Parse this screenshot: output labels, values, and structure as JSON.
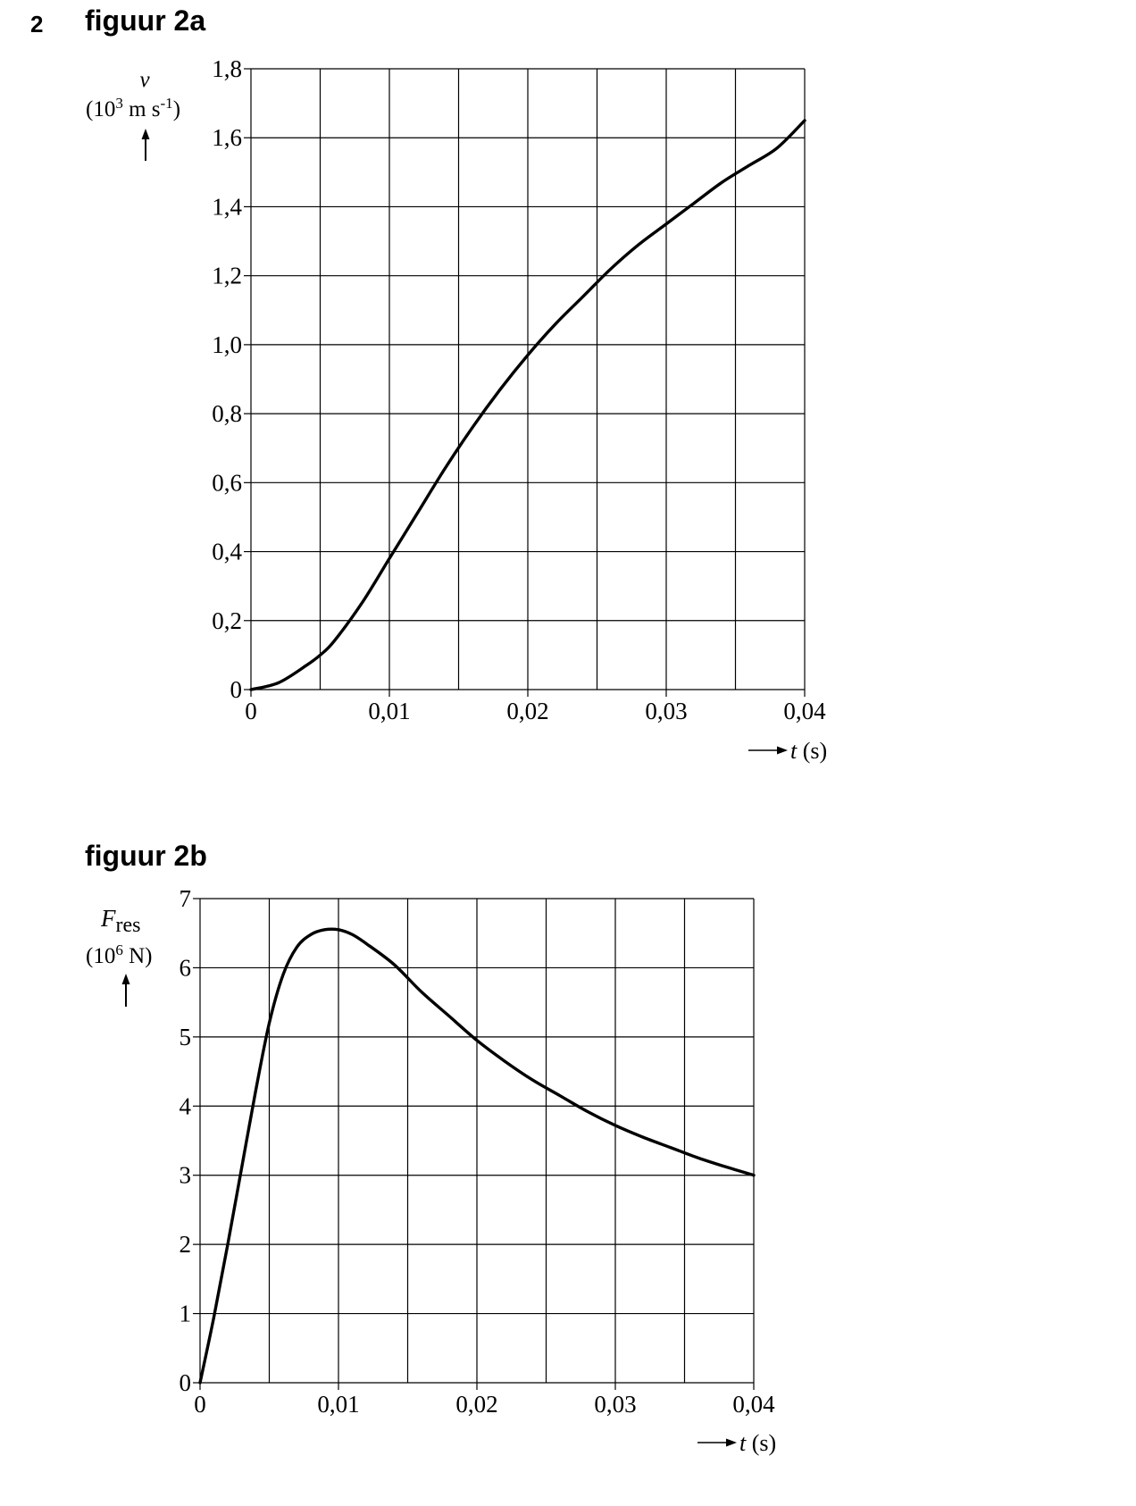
{
  "question_number": "2",
  "chart_data": [
    {
      "id": "fig2a",
      "type": "line",
      "title": "figuur 2a",
      "ylabel_symbol": "v",
      "ylabel_unit_prefix": "(10",
      "ylabel_unit_exp": "3",
      "ylabel_unit_mid": " m s",
      "ylabel_unit_exp2": "-1",
      "ylabel_unit_suffix": ")",
      "xlabel_symbol": "t",
      "xlabel_unit": " (s)",
      "xlim": [
        0,
        0.04
      ],
      "ylim": [
        0,
        1.8
      ],
      "grid": true,
      "x_grid_step": 0.005,
      "y_grid_step": 0.2,
      "x_ticks": [
        {
          "value": 0,
          "label": "0"
        },
        {
          "value": 0.01,
          "label": "0,01"
        },
        {
          "value": 0.02,
          "label": "0,02"
        },
        {
          "value": 0.03,
          "label": "0,03"
        },
        {
          "value": 0.04,
          "label": "0,04"
        }
      ],
      "y_ticks": [
        {
          "value": 0,
          "label": "0"
        },
        {
          "value": 0.2,
          "label": "0,2"
        },
        {
          "value": 0.4,
          "label": "0,4"
        },
        {
          "value": 0.6,
          "label": "0,6"
        },
        {
          "value": 0.8,
          "label": "0,8"
        },
        {
          "value": 1.0,
          "label": "1,0"
        },
        {
          "value": 1.2,
          "label": "1,2"
        },
        {
          "value": 1.4,
          "label": "1,4"
        },
        {
          "value": 1.6,
          "label": "1,6"
        },
        {
          "value": 1.8,
          "label": "1,8"
        }
      ],
      "series": [
        {
          "x": [
            0,
            0.002,
            0.004,
            0.005,
            0.006,
            0.008,
            0.01,
            0.012,
            0.014,
            0.016,
            0.018,
            0.02,
            0.022,
            0.024,
            0.026,
            0.028,
            0.03,
            0.032,
            0.034,
            0.036,
            0.038,
            0.04
          ],
          "y": [
            0,
            0.02,
            0.07,
            0.1,
            0.14,
            0.25,
            0.38,
            0.51,
            0.64,
            0.76,
            0.87,
            0.97,
            1.06,
            1.14,
            1.22,
            1.29,
            1.35,
            1.41,
            1.47,
            1.52,
            1.57,
            1.65
          ]
        }
      ]
    },
    {
      "id": "fig2b",
      "type": "line",
      "title": "figuur 2b",
      "ylabel_symbol": "F",
      "ylabel_subscript": "res",
      "ylabel_unit_prefix": "(10",
      "ylabel_unit_exp": "6",
      "ylabel_unit_suffix": " N)",
      "xlabel_symbol": "t",
      "xlabel_unit": " (s)",
      "xlim": [
        0,
        0.04
      ],
      "ylim": [
        0,
        7
      ],
      "grid": true,
      "x_grid_step": 0.005,
      "y_grid_step": 1,
      "x_ticks": [
        {
          "value": 0,
          "label": "0"
        },
        {
          "value": 0.01,
          "label": "0,01"
        },
        {
          "value": 0.02,
          "label": "0,02"
        },
        {
          "value": 0.03,
          "label": "0,03"
        },
        {
          "value": 0.04,
          "label": "0,04"
        }
      ],
      "y_ticks": [
        {
          "value": 0,
          "label": "0"
        },
        {
          "value": 1,
          "label": "1"
        },
        {
          "value": 2,
          "label": "2"
        },
        {
          "value": 3,
          "label": "3"
        },
        {
          "value": 4,
          "label": "4"
        },
        {
          "value": 5,
          "label": "5"
        },
        {
          "value": 6,
          "label": "6"
        },
        {
          "value": 7,
          "label": "7"
        }
      ],
      "series": [
        {
          "x": [
            0,
            0.001,
            0.002,
            0.003,
            0.004,
            0.005,
            0.006,
            0.007,
            0.008,
            0.009,
            0.01,
            0.011,
            0.012,
            0.014,
            0.016,
            0.018,
            0.02,
            0.022,
            0.024,
            0.026,
            0.028,
            0.03,
            0.032,
            0.034,
            0.036,
            0.038,
            0.04
          ],
          "y": [
            0,
            0.95,
            2.0,
            3.1,
            4.2,
            5.2,
            5.9,
            6.3,
            6.48,
            6.55,
            6.55,
            6.48,
            6.35,
            6.05,
            5.65,
            5.3,
            4.95,
            4.65,
            4.38,
            4.15,
            3.92,
            3.72,
            3.55,
            3.4,
            3.25,
            3.12,
            3.0
          ]
        }
      ]
    }
  ]
}
